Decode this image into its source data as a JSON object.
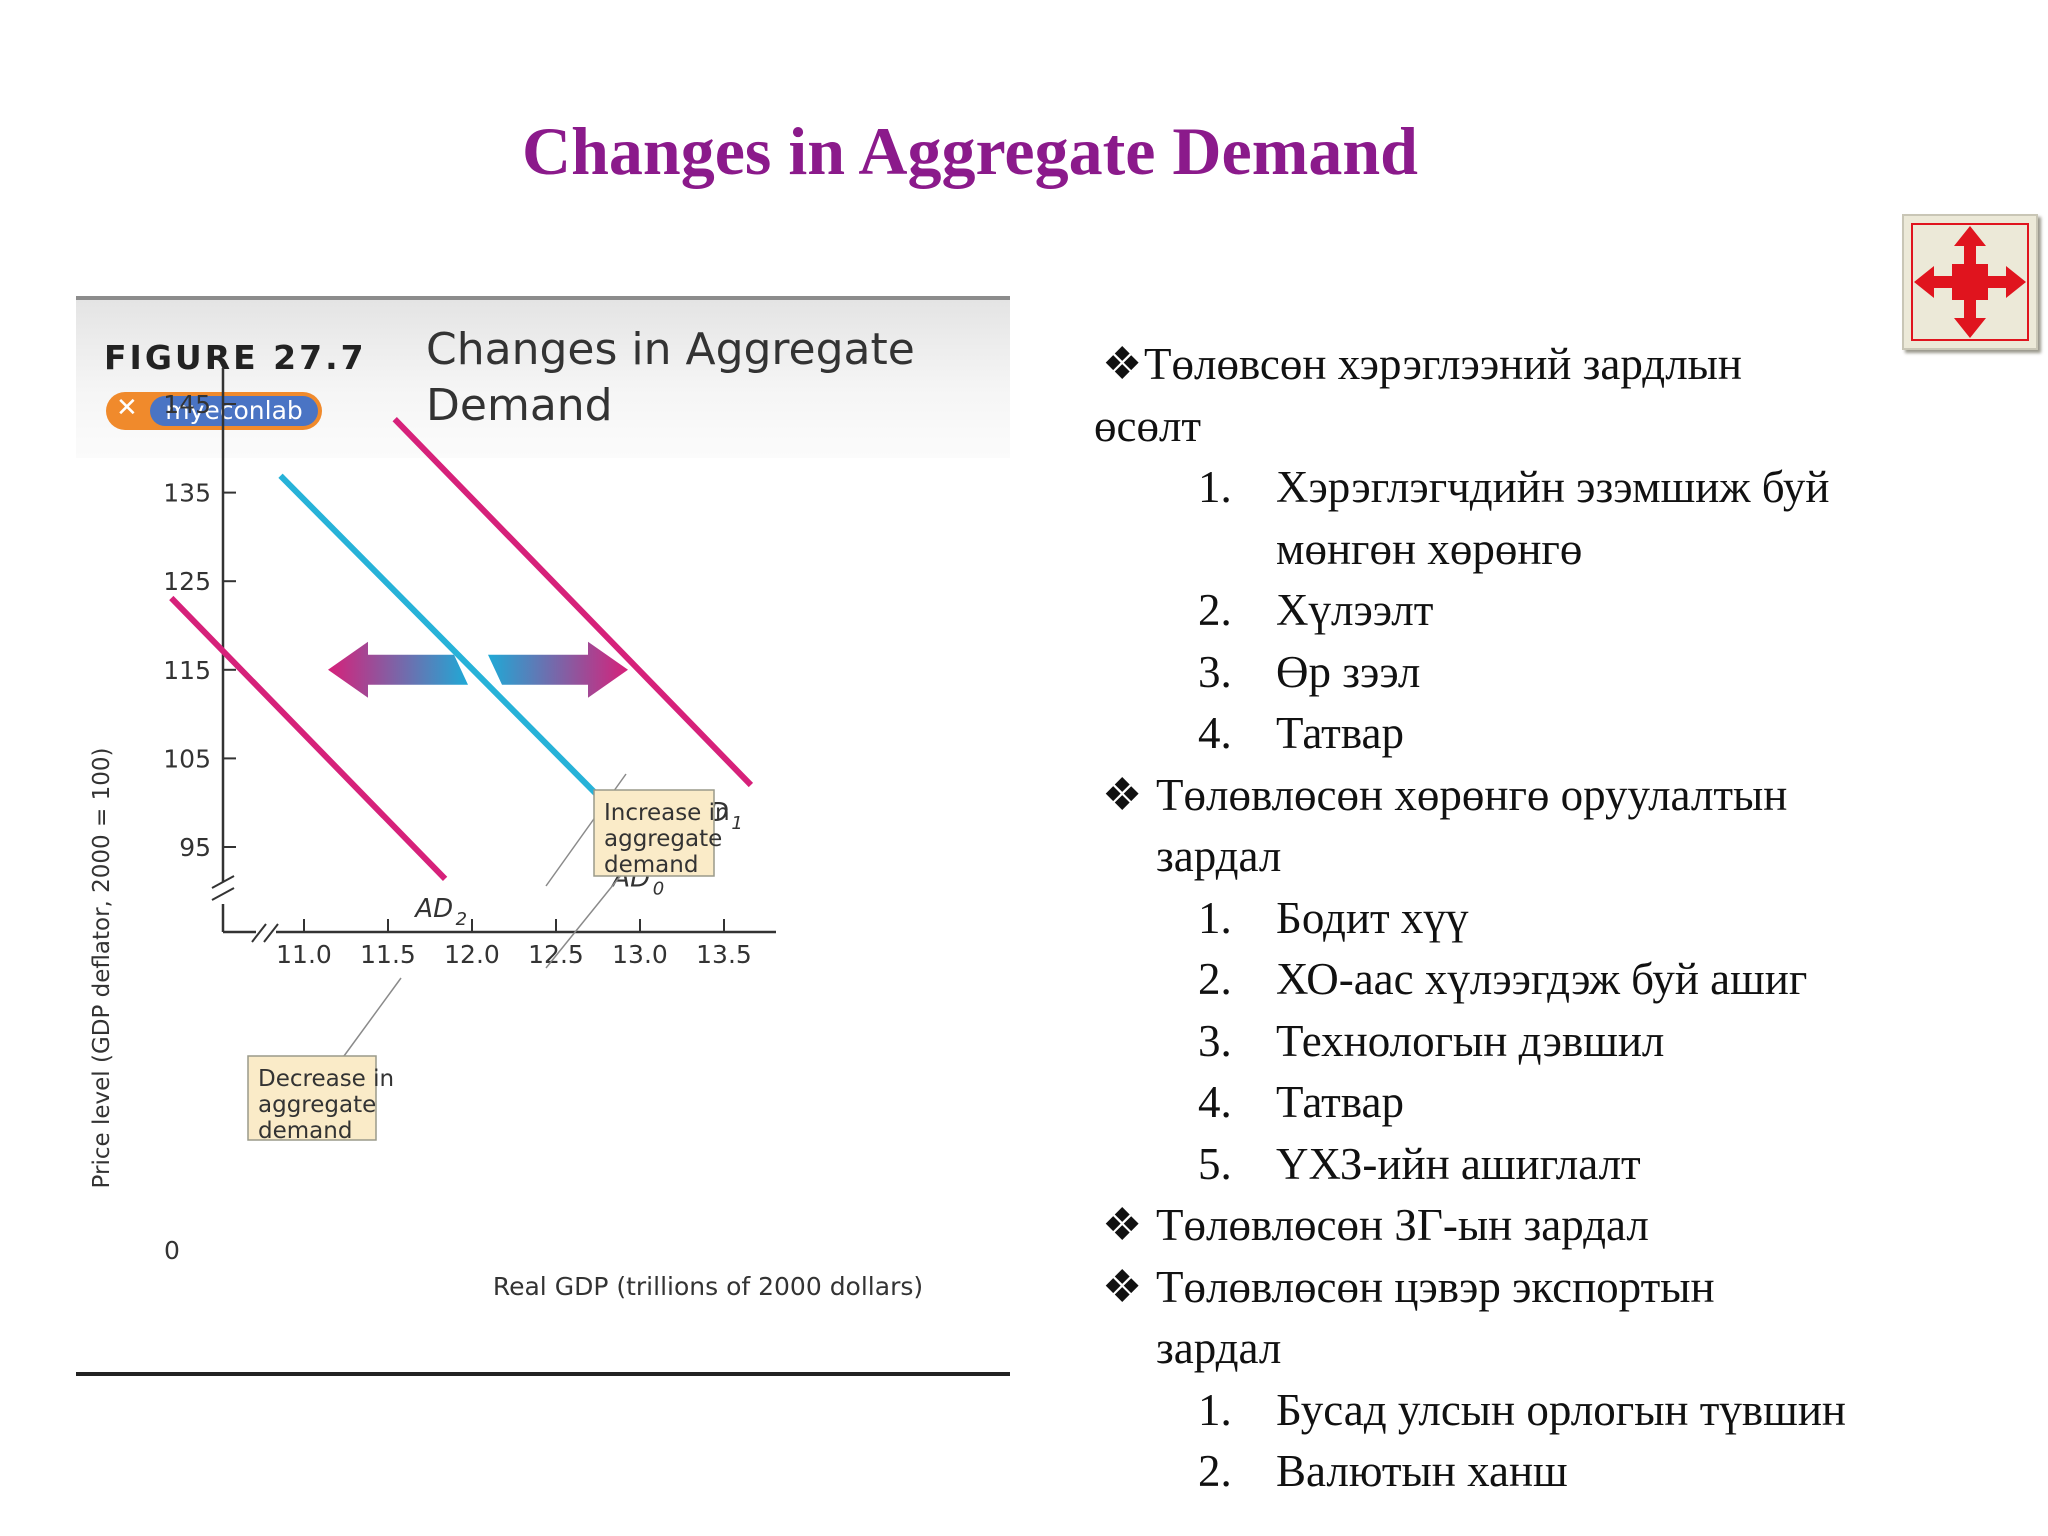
{
  "slide": {
    "title": "Changes in Aggregate Demand",
    "nav_button_icon": "four-way-arrows-icon"
  },
  "figure": {
    "number": "FIGURE 27.7",
    "title_line1": "Changes in Aggregate",
    "title_line2": "Demand",
    "badge": "myeconlab"
  },
  "chart_data": {
    "type": "line",
    "ylabel": "Price level (GDP deflator, 2000 = 100)",
    "xlabel": "Real GDP (trillions of 2000 dollars)",
    "xticks": [
      "11.0",
      "11.5",
      "12.0",
      "12.5",
      "13.0",
      "13.5"
    ],
    "xtick_values": [
      11.0,
      11.5,
      12.0,
      12.5,
      13.0,
      13.5
    ],
    "yticks": [
      "145",
      "135",
      "125",
      "115",
      "105",
      "95"
    ],
    "ytick_values": [
      145,
      135,
      125,
      115,
      105,
      95
    ],
    "origin_label": "0",
    "xlim": [
      10.6,
      13.9
    ],
    "ylim": [
      88,
      150
    ],
    "axis_break": true,
    "series": [
      {
        "name": "AD0",
        "label_main": "AD",
        "label_sub": "0",
        "color": "#27b2d8",
        "x": [
          10.86,
          13.12
        ],
        "y": [
          136.9,
          93.7
        ]
      },
      {
        "name": "AD1",
        "label_main": "AD",
        "label_sub": "1",
        "color": "#d6217a",
        "x": [
          11.54,
          13.66
        ],
        "y": [
          143.3,
          102.0
        ]
      },
      {
        "name": "AD2",
        "label_main": "AD",
        "label_sub": "2",
        "color": "#d6217a",
        "x": [
          10.21,
          11.84
        ],
        "y": [
          123.1,
          91.4
        ]
      }
    ],
    "annotations": {
      "increase": {
        "lines": [
          "Increase in",
          "aggregate",
          "demand"
        ],
        "color": "#faebc8"
      },
      "decrease": {
        "lines": [
          "Decrease in",
          "aggregate",
          "demand"
        ],
        "color": "#faebc8"
      }
    },
    "arrow_y": 115
  },
  "bullets": {
    "b1_l1": "Төлөвсөн хэрэглээний зардлын",
    "b1_l2": "өсөлт",
    "b1_items": [
      {
        "n": "1.",
        "l1": "Хэрэглэгчдийн эзэмшиж буй",
        "l2": "мөнгөн хөрөнгө"
      },
      {
        "n": "2.",
        "l1": "Хүлээлт"
      },
      {
        "n": "3.",
        "l1": "Өр зээл"
      },
      {
        "n": "4.",
        "l1": "Татвар"
      }
    ],
    "b2_l1": "Төлөвлөсөн хөрөнгө оруулалтын",
    "b2_l2": "зардал",
    "b2_items": [
      {
        "n": "1.",
        "l1": "Бодит хүү"
      },
      {
        "n": "2.",
        "l1": "ХО-аас хүлээгдэж буй ашиг"
      },
      {
        "n": "3.",
        "l1": "Технологын дэвшил"
      },
      {
        "n": "4.",
        "l1": "Татвар"
      },
      {
        "n": "5.",
        "l1": "ҮХЗ-ийн ашиглалт"
      }
    ],
    "b3_l1": "Төлөвлөсөн ЗГ-ын зардал",
    "b4_l1": "Төлөвлөсөн цэвэр экспортын",
    "b4_l2": "зардал",
    "b4_items": [
      {
        "n": "1.",
        "l1": "Бусад улсын орлогын түвшин"
      },
      {
        "n": "2.",
        "l1": "Валютын ханш"
      }
    ],
    "bullet_glyph": "❖"
  }
}
